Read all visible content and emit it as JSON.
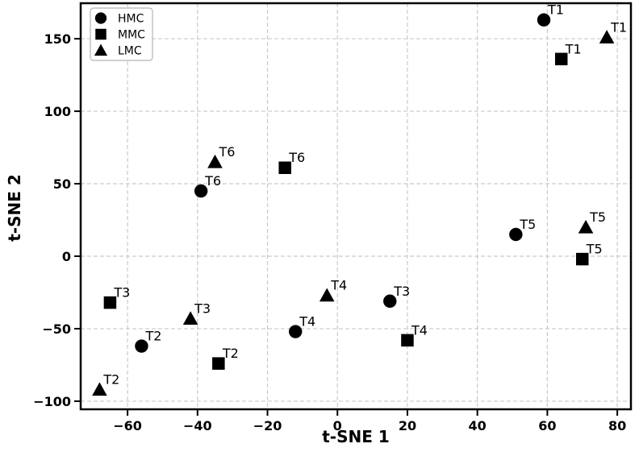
{
  "chart_data": {
    "type": "scatter",
    "title": "",
    "xlabel": "t-SNE 1",
    "ylabel": "t-SNE 2",
    "xlim": [
      -73.4,
      83.9
    ],
    "ylim": [
      -105.6,
      174.5
    ],
    "xticks": [
      -60,
      -40,
      -20,
      0,
      20,
      40,
      60,
      80
    ],
    "yticks": [
      -100,
      -50,
      0,
      50,
      100,
      150
    ],
    "grid": true,
    "grid_style": "dashed",
    "grid_color": "#c9c9c9",
    "marker_color": "#000000",
    "legend_position": "upper left",
    "categories": [
      "T1",
      "T2",
      "T3",
      "T4",
      "T5",
      "T6"
    ],
    "series": [
      {
        "name": "HMC",
        "marker": "circle",
        "points": [
          {
            "label": "T1",
            "x": 59,
            "y": 163
          },
          {
            "label": "T2",
            "x": -56,
            "y": -62
          },
          {
            "label": "T3",
            "x": 15,
            "y": -31
          },
          {
            "label": "T4",
            "x": -12,
            "y": -52
          },
          {
            "label": "T5",
            "x": 51,
            "y": 15
          },
          {
            "label": "T6",
            "x": -39,
            "y": 45
          }
        ]
      },
      {
        "name": "MMC",
        "marker": "square",
        "points": [
          {
            "label": "T1",
            "x": 64,
            "y": 136
          },
          {
            "label": "T2",
            "x": -34,
            "y": -74
          },
          {
            "label": "T3",
            "x": -65,
            "y": -32
          },
          {
            "label": "T4",
            "x": 20,
            "y": -58
          },
          {
            "label": "T5",
            "x": 70,
            "y": -2
          },
          {
            "label": "T6",
            "x": -15,
            "y": 61
          }
        ]
      },
      {
        "name": "LMC",
        "marker": "triangle",
        "points": [
          {
            "label": "T1",
            "x": 77,
            "y": 151
          },
          {
            "label": "T2",
            "x": -68,
            "y": -92
          },
          {
            "label": "T3",
            "x": -42,
            "y": -43
          },
          {
            "label": "T4",
            "x": -3,
            "y": -27
          },
          {
            "label": "T5",
            "x": 71,
            "y": 20
          },
          {
            "label": "T6",
            "x": -35,
            "y": 65
          }
        ]
      }
    ]
  }
}
